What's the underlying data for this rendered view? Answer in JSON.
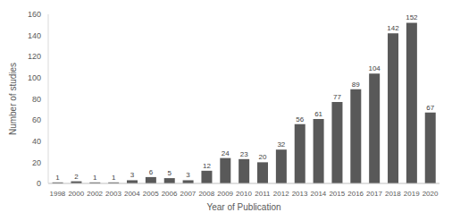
{
  "chart_data": {
    "type": "bar",
    "x_label": "Year of Publication",
    "y_label": "Number of studies",
    "categories": [
      "1998",
      "2000",
      "2002",
      "2003",
      "2004",
      "2005",
      "2006",
      "2007",
      "2008",
      "2009",
      "2010",
      "2011",
      "2012",
      "2013",
      "2014",
      "2015",
      "2016",
      "2017",
      "2018",
      "2019",
      "2020"
    ],
    "values": [
      1,
      2,
      1,
      1,
      3,
      6,
      5,
      3,
      12,
      24,
      23,
      20,
      32,
      56,
      61,
      77,
      89,
      104,
      142,
      152,
      67
    ],
    "color": "#595959",
    "ylim": [
      0,
      160
    ],
    "yticks": [
      0,
      20,
      40,
      60,
      80,
      100,
      120,
      140,
      160
    ],
    "grid": false,
    "data_labels": true
  }
}
